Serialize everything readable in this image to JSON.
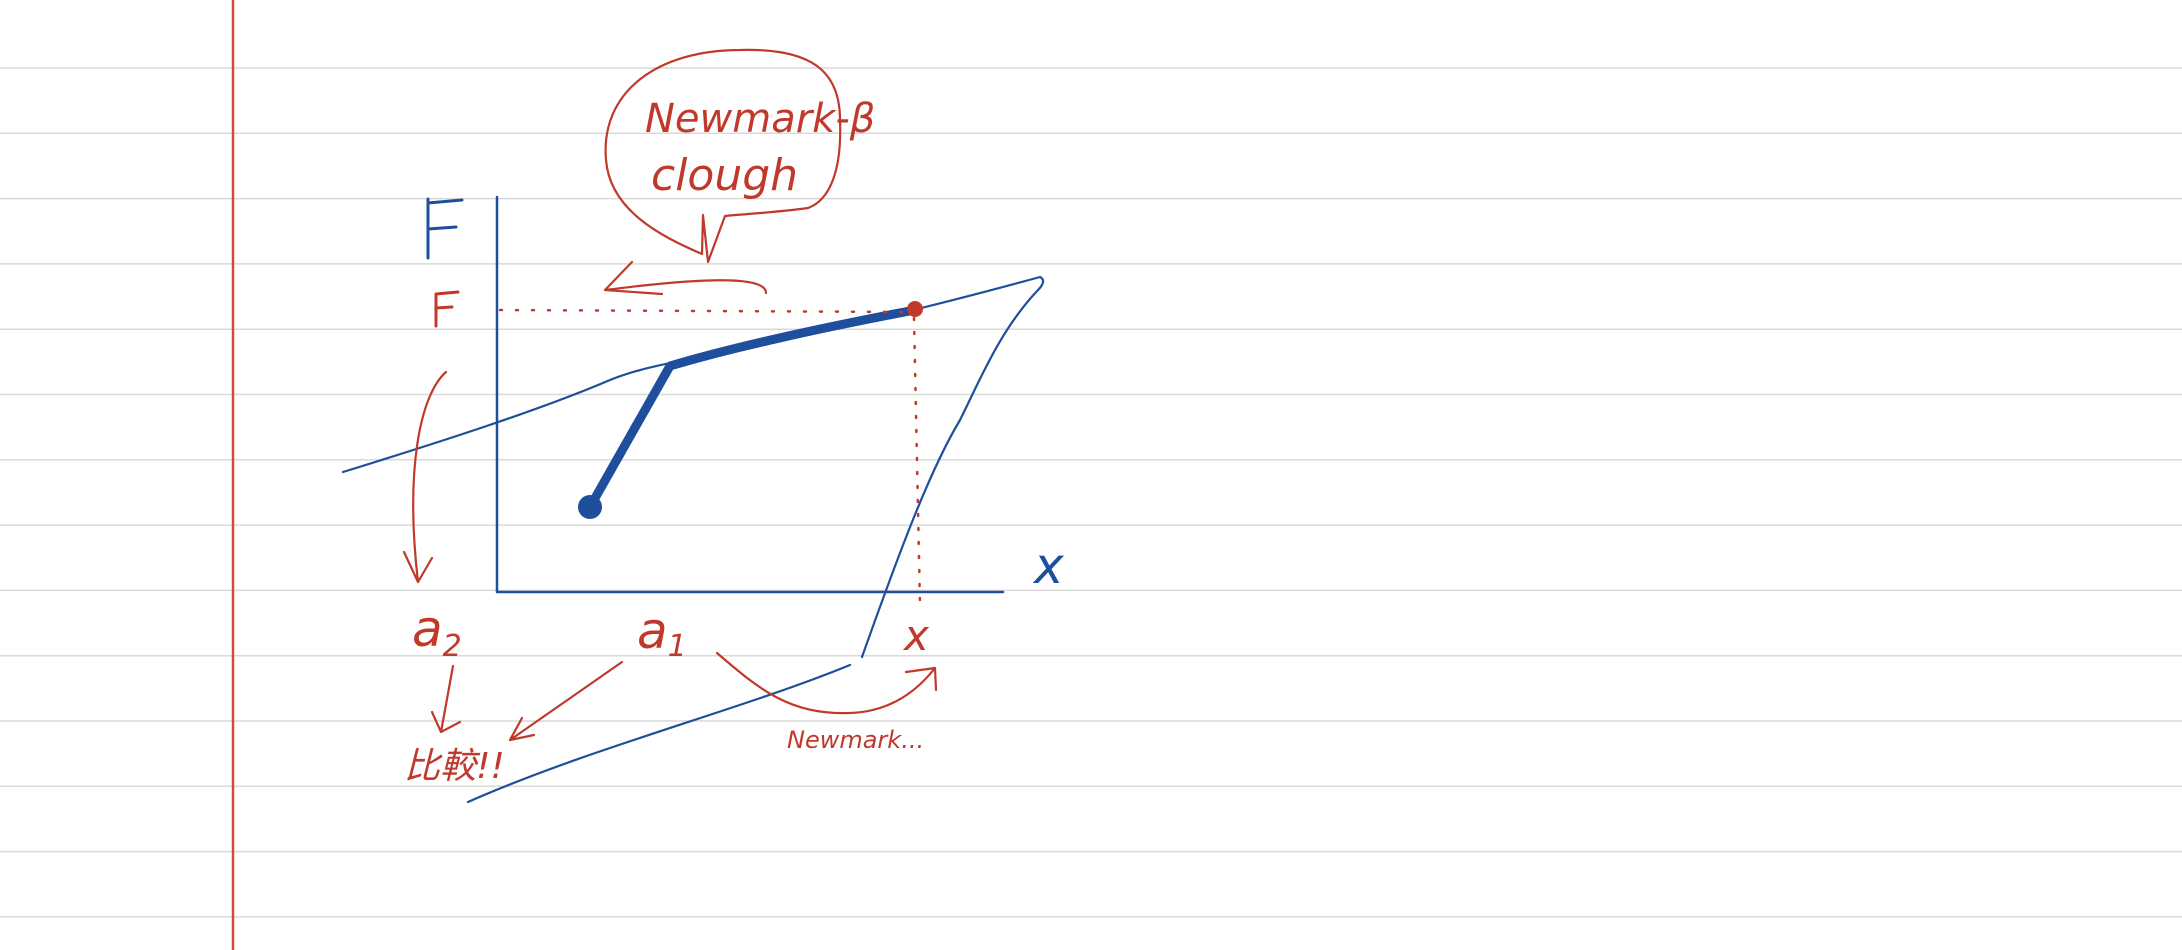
{
  "notebook": {
    "paper_color": "#ffffff",
    "rule_color": "#d9d9d9",
    "margin_color": "#d24a3a"
  },
  "ink": {
    "blue": "#1f4e9c",
    "red": "#c0392b"
  },
  "diagram": {
    "y_axis_label": "F",
    "x_axis_label": "x",
    "force_value_label": "F",
    "disp_value_label": "x",
    "bubble_line_1": "Newmark-β",
    "bubble_line_2": "clough",
    "a1_label": "a",
    "a1_subscript": "1",
    "a2_label": "a",
    "a2_subscript": "2",
    "compare_note": "比較!!",
    "newmark_note": "Newmark..."
  }
}
